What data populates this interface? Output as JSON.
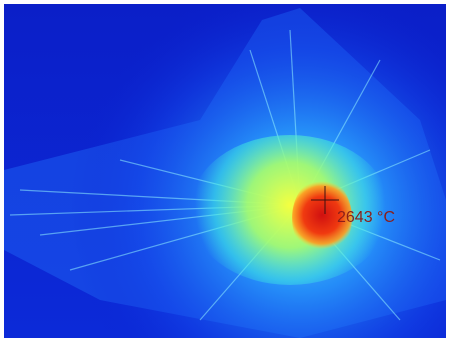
{
  "readout": {
    "temperature": "2643 °C"
  }
}
